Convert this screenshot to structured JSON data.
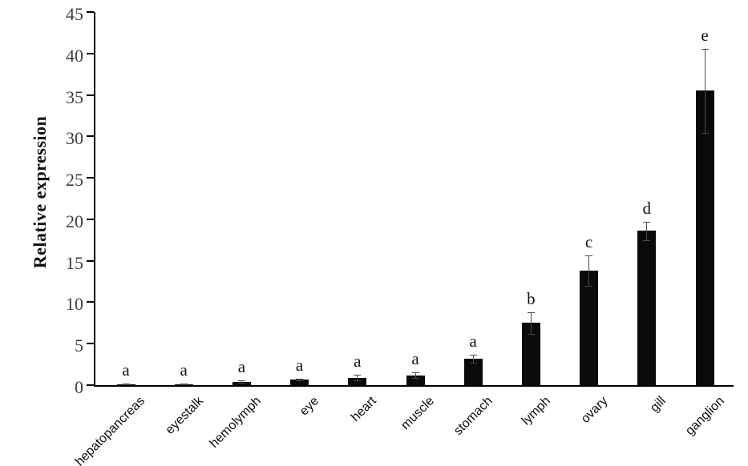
{
  "chart_data": {
    "type": "bar",
    "title": "",
    "xlabel": "",
    "ylabel": "Relative expression",
    "ylim": [
      0,
      45
    ],
    "yticks": [
      0,
      5,
      10,
      15,
      20,
      25,
      30,
      35,
      40,
      45
    ],
    "grid": false,
    "legend": null,
    "bar_color": "#0a0a0a",
    "error_bar_color": "#4d4d4d",
    "axis_color": "#000000",
    "tick_label_color": "#3d3d3d",
    "categories": [
      "hepatopancreas",
      "eyestalk",
      "hemolymph",
      "eye",
      "heart",
      "muscle",
      "stomach",
      "lymph",
      "ovary",
      "gill",
      "ganglion"
    ],
    "values": [
      0.1,
      0.1,
      0.4,
      0.7,
      0.9,
      1.2,
      3.2,
      7.5,
      13.8,
      18.6,
      35.5
    ],
    "errors": [
      0.05,
      0.05,
      0.15,
      0.1,
      0.35,
      0.3,
      0.5,
      1.3,
      1.8,
      1.1,
      5.1
    ],
    "significance_letters": [
      "a",
      "a",
      "a",
      "a",
      "a",
      "a",
      "a",
      "b",
      "c",
      "d",
      "e"
    ]
  }
}
